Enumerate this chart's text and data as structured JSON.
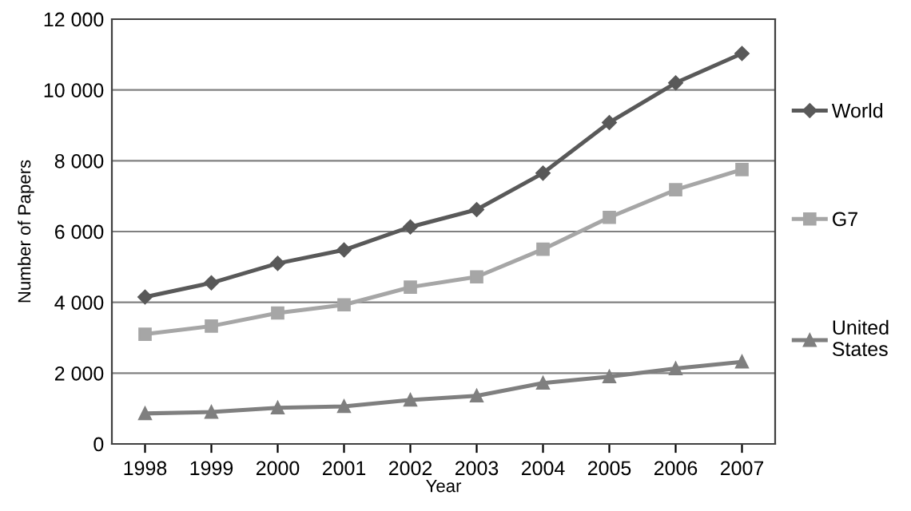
{
  "chart_data": {
    "type": "line",
    "xlabel": "Year",
    "ylabel": "Number of Papers",
    "categories": [
      "1998",
      "1999",
      "2000",
      "2001",
      "2002",
      "2003",
      "2004",
      "2005",
      "2006",
      "2007"
    ],
    "series": [
      {
        "name": "World",
        "color": "#595959",
        "marker": "diamond",
        "values": [
          4150,
          4550,
          5100,
          5480,
          6130,
          6620,
          7650,
          9080,
          10200,
          11030
        ]
      },
      {
        "name": "G7",
        "color": "#a6a6a6",
        "marker": "square",
        "values": [
          3100,
          3330,
          3700,
          3930,
          4430,
          4720,
          5500,
          6400,
          7180,
          7750
        ]
      },
      {
        "name": "United\nStates",
        "color": "#7f7f7f",
        "marker": "triangle",
        "values": [
          860,
          900,
          1020,
          1060,
          1240,
          1360,
          1720,
          1900,
          2130,
          2320
        ]
      }
    ],
    "ylim": [
      0,
      12000
    ],
    "yticks": [
      {
        "value": 0,
        "label": "0"
      },
      {
        "value": 2000,
        "label": "2 000"
      },
      {
        "value": 4000,
        "label": "4 000"
      },
      {
        "value": 6000,
        "label": "6 000"
      },
      {
        "value": 8000,
        "label": "8 000"
      },
      {
        "value": 10000,
        "label": "10 000"
      },
      {
        "value": 12000,
        "label": "12 000"
      }
    ],
    "grid": "y",
    "legend": "right",
    "line_style": "solid"
  }
}
